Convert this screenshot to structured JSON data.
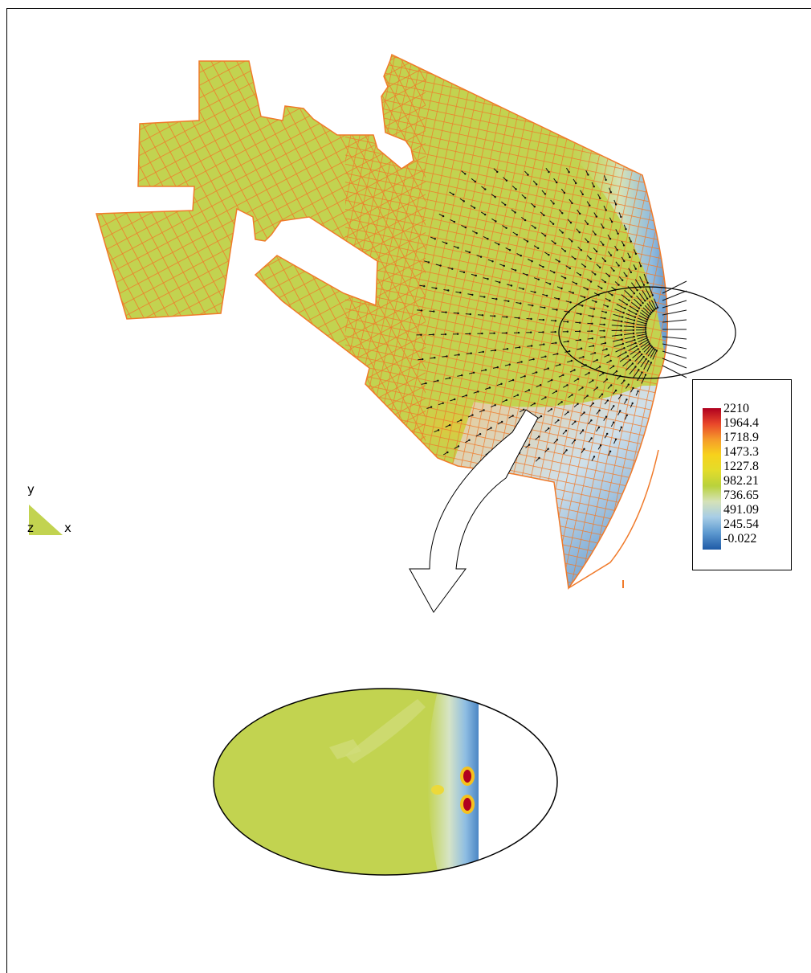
{
  "axes_labels": {
    "y": "y",
    "z": "z",
    "x": "x"
  },
  "legend": {
    "ticks": [
      "2210",
      "1964.4",
      "1718.9",
      "1473.3",
      "1227.8",
      "982.21",
      "736.65",
      "491.09",
      "245.54",
      "-0.022"
    ],
    "colors": [
      "#b0001f",
      "#e8462a",
      "#f59a2a",
      "#f7d21c",
      "#e3dc2a",
      "#b9d23c",
      "#d5e2b8",
      "#a7cde6",
      "#5e9ad0",
      "#1e5aa6"
    ]
  },
  "colors": {
    "mesh_fill": "#c2d350",
    "mesh_lines": "#f07a2a",
    "outline": "#000000"
  }
}
